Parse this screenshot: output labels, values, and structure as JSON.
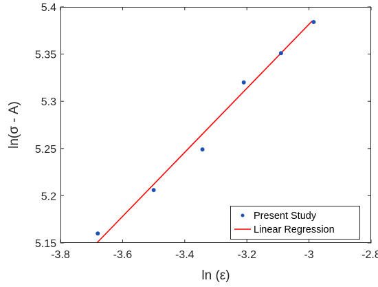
{
  "chart_data": {
    "type": "scatter",
    "title": "",
    "xlabel": "ln (ε)",
    "ylabel": "ln(σ - A)",
    "xlim": [
      -3.8,
      -2.8
    ],
    "ylim": [
      5.15,
      5.4
    ],
    "xticks": [
      -3.8,
      -3.6,
      -3.4,
      -3.2,
      -3.0,
      -2.8
    ],
    "xtick_labels": [
      "-3.8",
      "-3.6",
      "-3.4",
      "-3.2",
      "-3",
      "-2.8"
    ],
    "yticks": [
      5.15,
      5.2,
      5.25,
      5.3,
      5.35,
      5.4
    ],
    "ytick_labels": [
      "5.15",
      "5.2",
      "5.25",
      "5.3",
      "5.35",
      "5.4"
    ],
    "grid": false,
    "legend_position": "bottom-right",
    "series": [
      {
        "name": "Present Study",
        "kind": "scatter",
        "color": "#1f4fb5",
        "x": [
          -3.68,
          -3.5,
          -3.343,
          -3.21,
          -3.09,
          -2.985
        ],
        "y": [
          5.16,
          5.206,
          5.249,
          5.32,
          5.351,
          5.384
        ]
      },
      {
        "name": "Linear Regression",
        "kind": "line",
        "color": "#ff0000",
        "x": [
          -3.683,
          -2.99
        ],
        "y": [
          5.15,
          5.385
        ]
      }
    ]
  }
}
